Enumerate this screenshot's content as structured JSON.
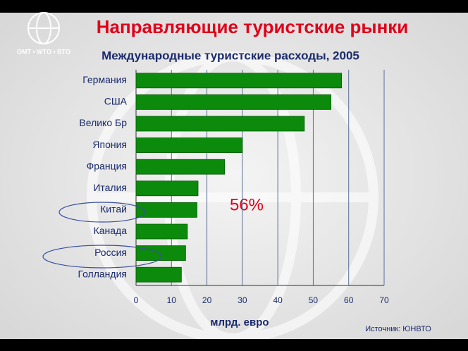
{
  "logo": "OMT • WTO • BTO",
  "source": "Источник: ЮНВТО",
  "chart_data": {
    "type": "hbar",
    "title": "Направляющие туристские рынки",
    "subtitle": "Международные туристские расходы, 2005",
    "x_label": "млрд. евро",
    "annotation": "56%",
    "categories": [
      "Германия",
      "США",
      "Велико Бр",
      "Япония",
      "Франция",
      "Италия",
      "Китай",
      "Канада",
      "Россия",
      "Голландия"
    ],
    "values": [
      58,
      55,
      47.5,
      30,
      25,
      17.5,
      17.2,
      14.5,
      14,
      12.8
    ],
    "color": "#0b8a0b",
    "xlim": [
      0,
      70
    ],
    "xticks": [
      0,
      10,
      20,
      30,
      40,
      50,
      60,
      70
    ],
    "grid": true
  }
}
